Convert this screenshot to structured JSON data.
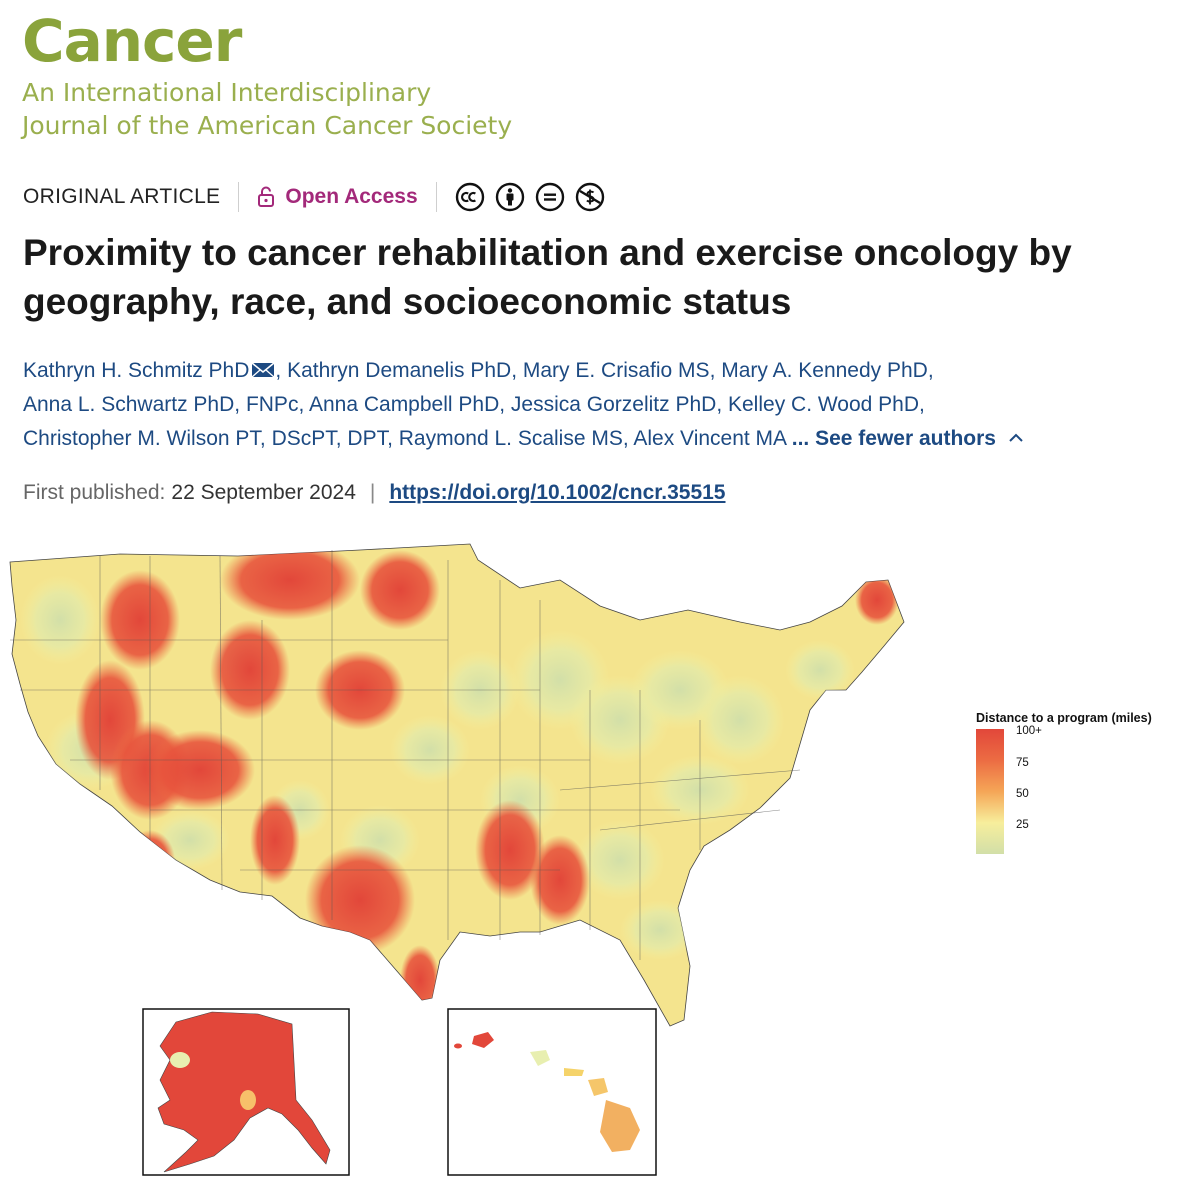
{
  "journal": {
    "name": "Cancer",
    "subtitle_line1": "An International Interdisciplinary",
    "subtitle_line2": "Journal of the American Cancer Society"
  },
  "meta": {
    "article_type": "ORIGINAL ARTICLE",
    "open_access": "Open Access",
    "license_icons": [
      "cc-icon",
      "by-icon",
      "nd-icon",
      "nc-icon"
    ]
  },
  "article": {
    "title": "Proximity to cancer rehabilitation and exercise oncology by geography, race, and socioeconomic status"
  },
  "authors": {
    "list": [
      "Kathryn H. Schmitz PhD",
      "Kathryn Demanelis PhD",
      "Mary E. Crisafio MS",
      "Mary A. Kennedy PhD",
      "Anna L. Schwartz PhD, FNPc",
      "Anna Campbell PhD",
      "Jessica Gorzelitz PhD",
      "Kelley C. Wood PhD",
      "Christopher M. Wilson PT, DScPT, DPT",
      "Raymond L. Scalise MS",
      "Alex Vincent MA"
    ],
    "see_fewer": "... See fewer authors"
  },
  "publication": {
    "label": "First published:",
    "date": "22 September 2024",
    "doi": "https://doi.org/10.1002/cncr.35515"
  },
  "figure": {
    "legend_title": "Distance to a program (miles)",
    "legend_ticks": [
      "100+",
      "75",
      "50",
      "25"
    ],
    "color_high": "#e2473a",
    "color_mid": "#f5a657",
    "color_low": "#d2dfa8"
  },
  "colors": {
    "journal_green": "#8aa33b",
    "open_access": "#a3297a",
    "link_blue": "#1d4a82"
  }
}
